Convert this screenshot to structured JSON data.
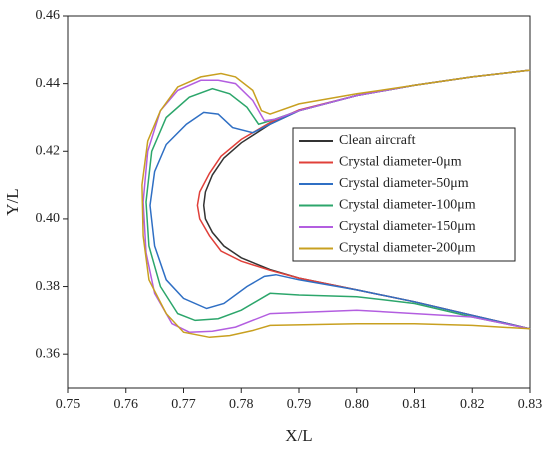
{
  "chart_data": {
    "type": "line",
    "x_label": "X/L",
    "y_label": "Y/L",
    "xlim": [
      0.75,
      0.83
    ],
    "ylim": [
      0.35,
      0.46
    ],
    "xticks": [
      0.75,
      0.76,
      0.77,
      0.78,
      0.79,
      {
        "value": 0.8,
        "label": "0.80"
      },
      0.81,
      0.82,
      0.83
    ],
    "yticks": [
      0.36,
      0.38,
      {
        "value": 0.4,
        "label": "0.40"
      },
      0.42,
      0.44,
      0.46
    ],
    "legend": "upper-right",
    "series": [
      {
        "name": "Clean aircraft",
        "color": "#333333",
        "x": [
          0.83,
          0.82,
          0.81,
          0.8,
          0.79,
          0.785,
          0.78,
          0.777,
          0.775,
          0.7738,
          0.7735,
          0.7738,
          0.775,
          0.777,
          0.78,
          0.785,
          0.79,
          0.8,
          0.81,
          0.82,
          0.83
        ],
        "values": [
          0.444,
          0.442,
          0.4395,
          0.4365,
          0.432,
          0.428,
          0.4225,
          0.418,
          0.413,
          0.408,
          0.404,
          0.4,
          0.396,
          0.392,
          0.3885,
          0.385,
          0.3825,
          0.379,
          0.3755,
          0.3715,
          0.3675
        ]
      },
      {
        "name": "Crystal diameter-0μm",
        "color": "#e0403a",
        "x": [
          0.83,
          0.82,
          0.81,
          0.8,
          0.79,
          0.785,
          0.78,
          0.7765,
          0.7745,
          0.7728,
          0.7724,
          0.7728,
          0.7745,
          0.7765,
          0.78,
          0.785,
          0.79,
          0.8,
          0.81,
          0.82,
          0.83
        ],
        "values": [
          0.444,
          0.442,
          0.4395,
          0.4365,
          0.4322,
          0.4285,
          0.4235,
          0.4185,
          0.4135,
          0.408,
          0.404,
          0.4,
          0.395,
          0.3905,
          0.3875,
          0.3848,
          0.3825,
          0.379,
          0.3755,
          0.3715,
          0.3675
        ]
      },
      {
        "name": "Crystal diameter-50μm",
        "color": "#2f6fc4",
        "x": [
          0.83,
          0.82,
          0.81,
          0.8,
          0.79,
          0.785,
          0.782,
          0.7785,
          0.776,
          0.7735,
          0.7705,
          0.767,
          0.765,
          0.7642,
          0.765,
          0.767,
          0.77,
          0.774,
          0.777,
          0.781,
          0.784,
          0.786,
          0.79,
          0.8,
          0.81,
          0.82,
          0.83
        ],
        "values": [
          0.444,
          0.442,
          0.4395,
          0.4365,
          0.432,
          0.428,
          0.4255,
          0.427,
          0.431,
          0.4315,
          0.428,
          0.422,
          0.414,
          0.404,
          0.392,
          0.382,
          0.3765,
          0.3735,
          0.375,
          0.38,
          0.383,
          0.3835,
          0.382,
          0.379,
          0.3755,
          0.3715,
          0.3675
        ]
      },
      {
        "name": "Crystal diameter-100μm",
        "color": "#2ca66b",
        "x": [
          0.83,
          0.82,
          0.81,
          0.8,
          0.79,
          0.785,
          0.783,
          0.781,
          0.778,
          0.775,
          0.771,
          0.767,
          0.7645,
          0.7635,
          0.764,
          0.766,
          0.769,
          0.772,
          0.776,
          0.78,
          0.785,
          0.79,
          0.8,
          0.81,
          0.82,
          0.83
        ],
        "values": [
          0.444,
          0.442,
          0.4395,
          0.4365,
          0.432,
          0.429,
          0.428,
          0.433,
          0.437,
          0.4385,
          0.436,
          0.43,
          0.42,
          0.405,
          0.392,
          0.38,
          0.372,
          0.37,
          0.3705,
          0.373,
          0.378,
          0.3775,
          0.377,
          0.375,
          0.371,
          0.3675
        ]
      },
      {
        "name": "Crystal diameter-150μm",
        "color": "#b35ee0",
        "x": [
          0.83,
          0.82,
          0.81,
          0.8,
          0.79,
          0.786,
          0.784,
          0.782,
          0.779,
          0.776,
          0.773,
          0.769,
          0.766,
          0.7638,
          0.763,
          0.7635,
          0.765,
          0.768,
          0.771,
          0.775,
          0.779,
          0.785,
          0.8,
          0.82,
          0.83
        ],
        "values": [
          0.444,
          0.442,
          0.4395,
          0.4365,
          0.432,
          0.4295,
          0.429,
          0.435,
          0.44,
          0.441,
          0.441,
          0.438,
          0.432,
          0.42,
          0.405,
          0.39,
          0.378,
          0.369,
          0.3665,
          0.3668,
          0.368,
          0.372,
          0.373,
          0.371,
          0.3675
        ]
      },
      {
        "name": "Crystal diameter-200μm",
        "color": "#c8a020",
        "x": [
          0.83,
          0.82,
          0.81,
          0.8,
          0.79,
          0.785,
          0.7835,
          0.782,
          0.779,
          0.7765,
          0.773,
          0.769,
          0.766,
          0.7638,
          0.7628,
          0.763,
          0.764,
          0.767,
          0.77,
          0.7745,
          0.778,
          0.782,
          0.785,
          0.8,
          0.81,
          0.82,
          0.83
        ],
        "values": [
          0.444,
          0.442,
          0.4395,
          0.437,
          0.434,
          0.431,
          0.432,
          0.438,
          0.442,
          0.443,
          0.442,
          0.439,
          0.432,
          0.423,
          0.41,
          0.395,
          0.382,
          0.372,
          0.3665,
          0.365,
          0.3655,
          0.367,
          0.3685,
          0.369,
          0.369,
          0.3685,
          0.3675
        ]
      }
    ]
  }
}
